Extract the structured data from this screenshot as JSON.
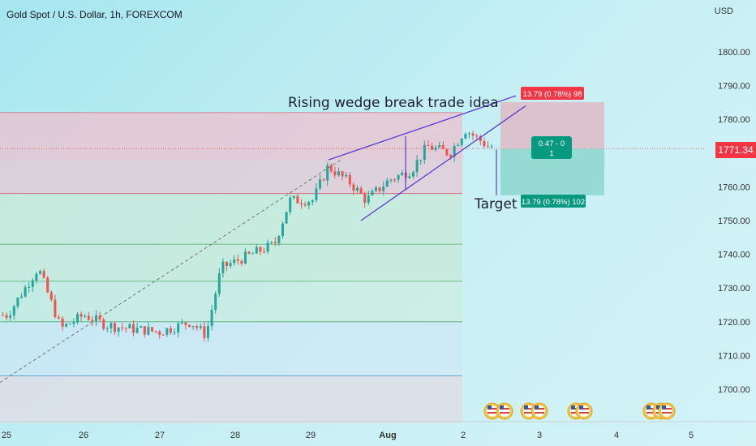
{
  "header": {
    "symbol_title": "Gold Spot / U.S. Dollar, 1h, FOREXCOM",
    "currency": "USD"
  },
  "price_tag": "1771.34",
  "annotations": {
    "headline": "Rising wedge break trade idea",
    "target": "Target",
    "stop_box": "13.79 (0.78%) 98",
    "target_box": "13.79 (0.78%) 102",
    "center_box_top": "0.47 - 0",
    "center_box_bottom": "1"
  },
  "colors": {
    "up": "#26a69a",
    "down": "#ef5350",
    "wedge": "#5b3bd6",
    "stop_zone": "#e9a3b3",
    "target_zone": "#7fd1c6",
    "price_tag": "#f23645"
  },
  "chart_data": {
    "type": "candlestick",
    "title": "Gold Spot / U.S. Dollar, 1h, FOREXCOM",
    "x_ticks": [
      "25",
      "26",
      "27",
      "28",
      "29",
      "Aug",
      "2",
      "3",
      "4",
      "5"
    ],
    "y_ticks": [
      1700,
      1710,
      1720,
      1730,
      1740,
      1750,
      1760,
      1770,
      1780,
      1790,
      1800
    ],
    "ylim": [
      1690,
      1810
    ],
    "last_price": 1771.34,
    "entry": 1771.3,
    "stop": 1785.1,
    "target": 1757.5,
    "ohlc_path": [
      {
        "day": 25.0,
        "close": 1722
      },
      {
        "day": 25.4,
        "close": 1736
      },
      {
        "day": 25.7,
        "close": 1718
      },
      {
        "day": 26.0,
        "close": 1722
      },
      {
        "day": 26.3,
        "close": 1719
      },
      {
        "day": 26.6,
        "close": 1718
      },
      {
        "day": 27.0,
        "close": 1717
      },
      {
        "day": 27.4,
        "close": 1720
      },
      {
        "day": 27.6,
        "close": 1716
      },
      {
        "day": 27.8,
        "close": 1736
      },
      {
        "day": 28.2,
        "close": 1740
      },
      {
        "day": 28.5,
        "close": 1743
      },
      {
        "day": 28.7,
        "close": 1756
      },
      {
        "day": 29.0,
        "close": 1756
      },
      {
        "day": 29.2,
        "close": 1766
      },
      {
        "day": 29.5,
        "close": 1761
      },
      {
        "day": 29.7,
        "close": 1756
      },
      {
        "day": 30.0,
        "close": 1762
      },
      {
        "day": 30.3,
        "close": 1765
      },
      {
        "day": 30.5,
        "close": 1772
      },
      {
        "day": 30.8,
        "close": 1770
      },
      {
        "day": 31.0,
        "close": 1777
      },
      {
        "day": 31.3,
        "close": 1772
      }
    ]
  }
}
